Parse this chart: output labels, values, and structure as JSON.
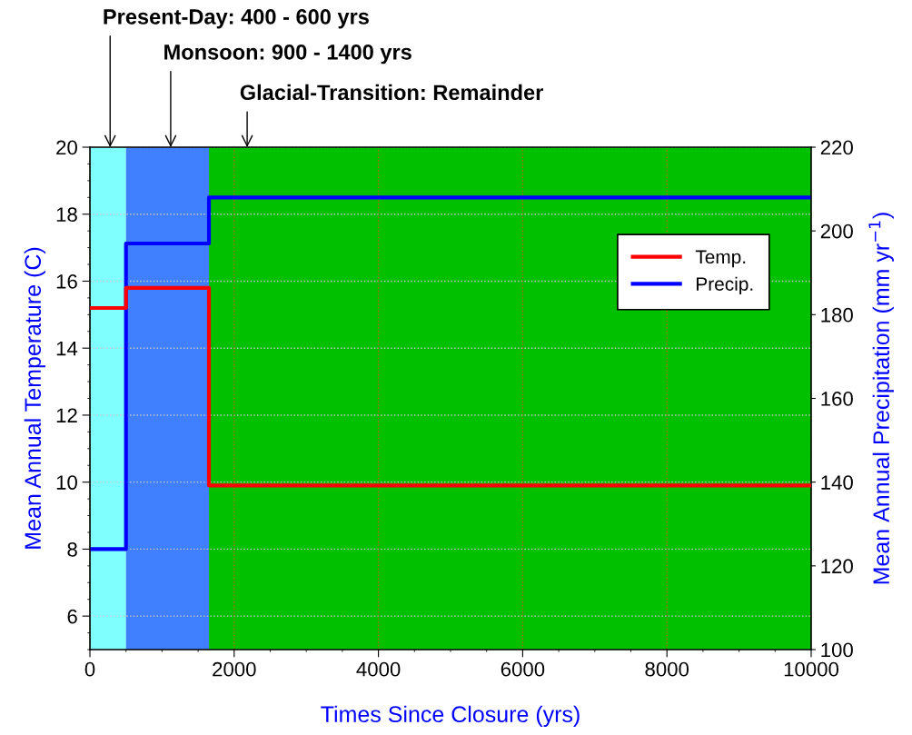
{
  "chart_data": {
    "type": "step",
    "xlabel": "Times Since Closure (yrs)",
    "ylabel": "Mean Annual Temperature (C)",
    "y2label": "Mean Annual Precipitation (mm yr$^{−1}$)",
    "x": [
      0,
      500,
      1650,
      10000
    ],
    "series": [
      {
        "name": "Temp.",
        "color": "#ff0000",
        "values": [
          15.2,
          15.8,
          9.9,
          9.9
        ]
      },
      {
        "name": "Precip.",
        "color": "#0000ff",
        "values": [
          124,
          197,
          208,
          208
        ],
        "axis": "y2"
      }
    ],
    "bands": [
      {
        "axis": "x",
        "from": 0,
        "to": 500,
        "color": "#80ffff"
      },
      {
        "axis": "x",
        "from": 500,
        "to": 1650,
        "color": "#4080ff"
      },
      {
        "axis": "x",
        "from": 1650,
        "to": 10000,
        "color": "#00c000"
      }
    ],
    "annotations": [
      {
        "text": "Present-Day: 400 - 600 yrs",
        "x": 280,
        "y": 20
      },
      {
        "text": "Monsoon: 900 - 1400 yrs",
        "x": 1120,
        "y": 20
      },
      {
        "text": "Glacial-Transition: Remainder",
        "x": 2180,
        "y": 20
      }
    ],
    "xlim": [
      0,
      10000
    ],
    "xticks": [
      0,
      2000,
      4000,
      6000,
      8000,
      10000
    ],
    "ylim": [
      5,
      20
    ],
    "yticks": [
      6,
      8,
      10,
      12,
      14,
      16,
      18,
      20
    ],
    "y2lim": [
      100,
      220
    ],
    "y2ticks": [
      100,
      120,
      140,
      160,
      180,
      200,
      220
    ],
    "grid": true,
    "legend": "top right",
    "line_style": "solid",
    "marker": "none"
  }
}
